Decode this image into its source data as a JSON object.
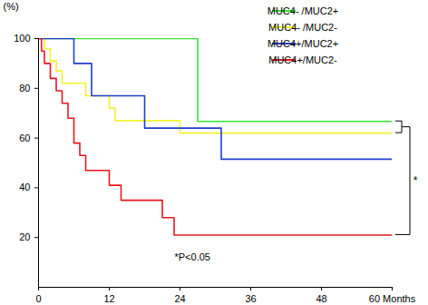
{
  "chart_data": {
    "type": "line",
    "line_style": "step",
    "ylabel": "(%)",
    "xlim": [
      0,
      60
    ],
    "xticks": [
      0,
      12,
      24,
      36,
      48,
      {
        "value": 60,
        "label": "60 Months"
      }
    ],
    "ylim": [
      0,
      100
    ],
    "yticks": [
      20,
      40,
      60,
      80,
      100
    ],
    "legend": "top-right",
    "annotations": [
      "*P<0.05",
      "*"
    ],
    "series": [
      {
        "name": "MUC4- /MUC2+",
        "color": "#33e633",
        "x": [
          0,
          27,
          60
        ],
        "values": [
          100,
          66.7,
          66.7
        ]
      },
      {
        "name": "MUC4- /MUC2-",
        "color": "#f2f230",
        "x": [
          0,
          1,
          2,
          3,
          4,
          8,
          12,
          13,
          24,
          60
        ],
        "values": [
          100,
          96,
          91,
          87,
          82,
          77,
          72,
          67,
          62,
          62
        ]
      },
      {
        "name": "MUC4+/MUC2+",
        "color": "#1f3fcc",
        "x": [
          0,
          6,
          9,
          18,
          31,
          60
        ],
        "values": [
          100,
          90,
          77,
          64,
          51.5,
          51.5
        ]
      },
      {
        "name": "MUC4+/MUC2-",
        "color": "#e8171c",
        "x": [
          0,
          0.5,
          1,
          2,
          3,
          4,
          5,
          6,
          7,
          8,
          12,
          14,
          21,
          23,
          60
        ],
        "values": [
          100,
          95,
          90,
          84,
          79,
          74,
          68,
          58,
          53,
          47,
          41,
          35,
          28,
          21,
          21
        ]
      }
    ]
  }
}
